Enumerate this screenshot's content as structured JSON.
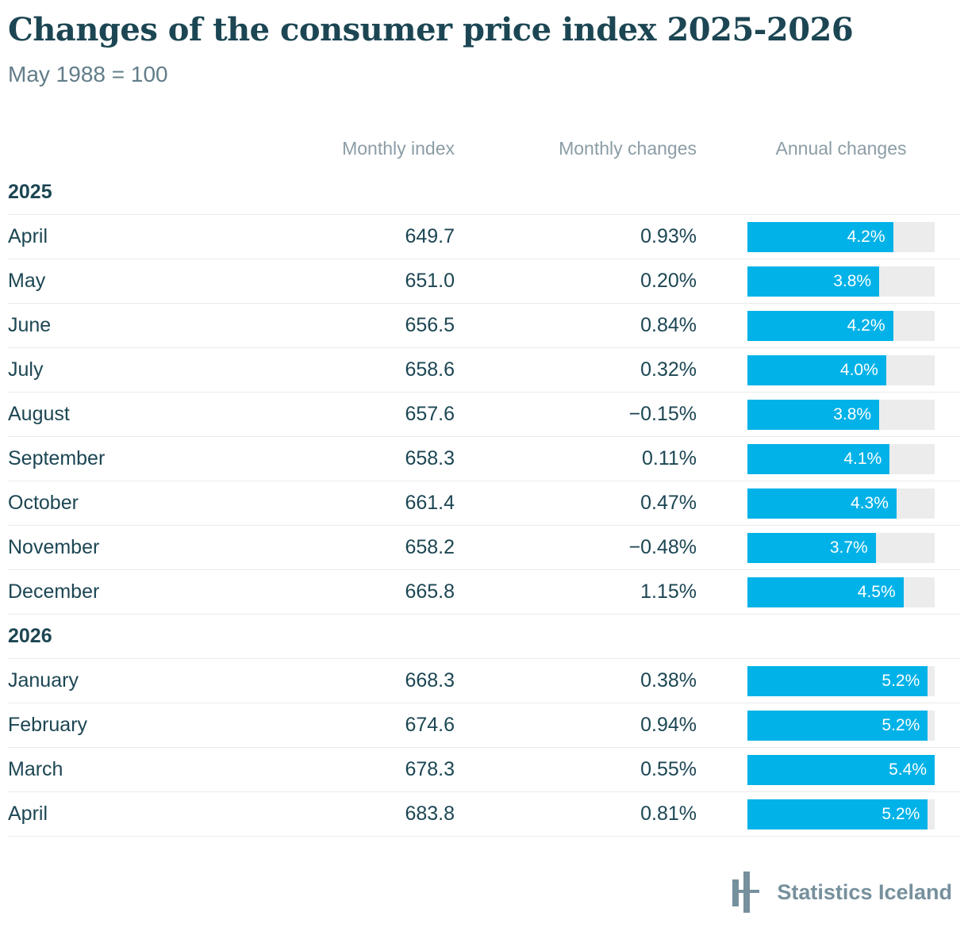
{
  "title": "Changes of the consumer price index 2025-2026",
  "subtitle": "May 1988 = 100",
  "headers": {
    "index": "Monthly index",
    "monthly": "Monthly changes",
    "annual": "Annual changes"
  },
  "colors": {
    "accent_bar": "#00b2e8",
    "bar_track": "#ececec",
    "text_dark_teal": "#1c4653",
    "header_gray": "#8c9da6",
    "subtitle_gray": "#627d89",
    "logo_slate": "#76909d",
    "row_border": "#eaeaea"
  },
  "bar_scale": {
    "min": 0,
    "max": 5.4
  },
  "table": {
    "sections": [
      {
        "year": "2025",
        "rows": [
          {
            "month": "April",
            "index": "649.7",
            "monthly": "0.93%",
            "annual": 4.2,
            "annual_label": "4.2%"
          },
          {
            "month": "May",
            "index": "651.0",
            "monthly": "0.20%",
            "annual": 3.8,
            "annual_label": "3.8%"
          },
          {
            "month": "June",
            "index": "656.5",
            "monthly": "0.84%",
            "annual": 4.2,
            "annual_label": "4.2%"
          },
          {
            "month": "July",
            "index": "658.6",
            "monthly": "0.32%",
            "annual": 4.0,
            "annual_label": "4.0%"
          },
          {
            "month": "August",
            "index": "657.6",
            "monthly": "−0.15%",
            "annual": 3.8,
            "annual_label": "3.8%"
          },
          {
            "month": "September",
            "index": "658.3",
            "monthly": "0.11%",
            "annual": 4.1,
            "annual_label": "4.1%"
          },
          {
            "month": "October",
            "index": "661.4",
            "monthly": "0.47%",
            "annual": 4.3,
            "annual_label": "4.3%"
          },
          {
            "month": "November",
            "index": "658.2",
            "monthly": "−0.48%",
            "annual": 3.7,
            "annual_label": "3.7%"
          },
          {
            "month": "December",
            "index": "665.8",
            "monthly": "1.15%",
            "annual": 4.5,
            "annual_label": "4.5%"
          }
        ]
      },
      {
        "year": "2026",
        "rows": [
          {
            "month": "January",
            "index": "668.3",
            "monthly": "0.38%",
            "annual": 5.2,
            "annual_label": "5.2%"
          },
          {
            "month": "February",
            "index": "674.6",
            "monthly": "0.94%",
            "annual": 5.2,
            "annual_label": "5.2%"
          },
          {
            "month": "March",
            "index": "678.3",
            "monthly": "0.55%",
            "annual": 5.4,
            "annual_label": "5.4%"
          },
          {
            "month": "April",
            "index": "683.8",
            "monthly": "0.81%",
            "annual": 5.2,
            "annual_label": "5.2%"
          }
        ]
      }
    ]
  },
  "footer": {
    "brand": "Statistics Iceland"
  },
  "chart_data": {
    "type": "table",
    "title": "Changes of the consumer price index 2025-2026",
    "subtitle": "May 1988 = 100",
    "columns": [
      "Month",
      "Monthly index",
      "Monthly changes",
      "Annual changes"
    ],
    "bar_column": {
      "name": "Annual changes",
      "unit": "%",
      "axis_min": 0,
      "axis_max": 5.4,
      "render": "horizontal bar with inline label"
    },
    "rows": [
      [
        "2025 April",
        649.7,
        0.93,
        4.2
      ],
      [
        "2025 May",
        651.0,
        0.2,
        3.8
      ],
      [
        "2025 June",
        656.5,
        0.84,
        4.2
      ],
      [
        "2025 July",
        658.6,
        0.32,
        4.0
      ],
      [
        "2025 August",
        657.6,
        -0.15,
        3.8
      ],
      [
        "2025 September",
        658.3,
        0.11,
        4.1
      ],
      [
        "2025 October",
        661.4,
        0.47,
        4.3
      ],
      [
        "2025 November",
        658.2,
        -0.48,
        3.7
      ],
      [
        "2025 December",
        665.8,
        1.15,
        4.5
      ],
      [
        "2026 January",
        668.3,
        0.38,
        5.2
      ],
      [
        "2026 February",
        674.6,
        0.94,
        5.2
      ],
      [
        "2026 March",
        678.3,
        0.55,
        5.4
      ],
      [
        "2026 April",
        683.8,
        0.81,
        5.2
      ]
    ]
  }
}
